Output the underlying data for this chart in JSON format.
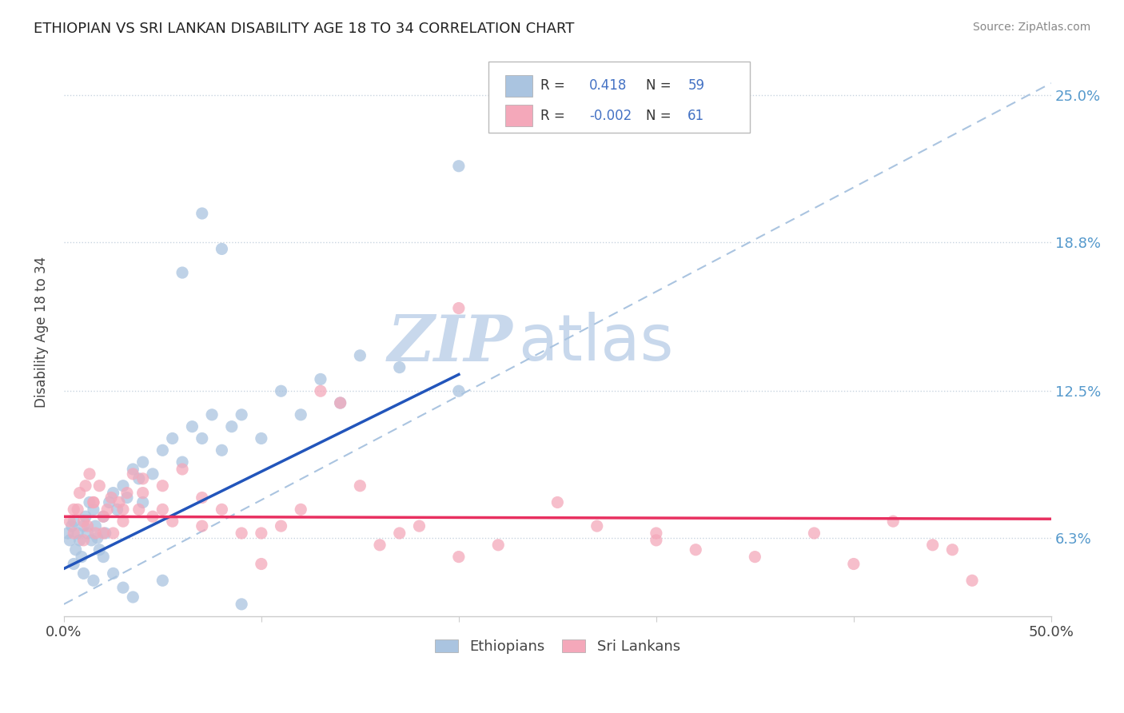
{
  "title": "ETHIOPIAN VS SRI LANKAN DISABILITY AGE 18 TO 34 CORRELATION CHART",
  "source": "Source: ZipAtlas.com",
  "ylabel": "Disability Age 18 to 34",
  "xlim": [
    0.0,
    50.0
  ],
  "ylim": [
    3.0,
    27.0
  ],
  "xtick_positions": [
    0.0,
    10.0,
    20.0,
    30.0,
    40.0,
    50.0
  ],
  "xticklabels": [
    "0.0%",
    "",
    "",
    "",
    "",
    "50.0%"
  ],
  "ytick_right_labels": [
    "6.3%",
    "12.5%",
    "18.8%",
    "25.0%"
  ],
  "ytick_right_values": [
    6.3,
    12.5,
    18.8,
    25.0
  ],
  "r_ethiopian": 0.418,
  "n_ethiopian": 59,
  "r_srilankan": -0.002,
  "n_srilankan": 61,
  "color_ethiopian": "#aac4e0",
  "color_srilankan": "#f4a8ba",
  "color_blue_line": "#2255bb",
  "color_pink_line": "#e83060",
  "color_dashed_line": "#aac4e0",
  "watermark_zip": "ZIP",
  "watermark_atlas": "atlas",
  "watermark_color": "#c8d8ec",
  "background_color": "#ffffff",
  "grid_color": "#c8d4e0",
  "legend_r_color": "#333333",
  "legend_n_color": "#4472c4",
  "eth_x": [
    0.2,
    0.3,
    0.4,
    0.5,
    0.6,
    0.7,
    0.8,
    0.9,
    1.0,
    1.1,
    1.2,
    1.3,
    1.4,
    1.5,
    1.6,
    1.7,
    1.8,
    2.0,
    2.1,
    2.3,
    2.5,
    2.7,
    3.0,
    3.2,
    3.5,
    3.8,
    4.0,
    4.5,
    5.0,
    5.5,
    6.0,
    6.5,
    7.0,
    7.5,
    8.0,
    8.5,
    9.0,
    10.0,
    11.0,
    12.0,
    13.0,
    14.0,
    15.0,
    17.0,
    20.0,
    0.5,
    1.0,
    1.5,
    2.0,
    2.5,
    3.0,
    3.5,
    4.0,
    5.0,
    6.0,
    7.0,
    8.0,
    9.0,
    20.0
  ],
  "eth_y": [
    6.5,
    6.2,
    6.8,
    7.0,
    5.8,
    6.5,
    6.2,
    5.5,
    6.8,
    7.2,
    6.5,
    7.8,
    6.2,
    7.5,
    6.8,
    6.3,
    5.8,
    7.2,
    6.5,
    7.8,
    8.2,
    7.5,
    8.5,
    8.0,
    9.2,
    8.8,
    9.5,
    9.0,
    10.0,
    10.5,
    9.5,
    11.0,
    10.5,
    11.5,
    10.0,
    11.0,
    11.5,
    10.5,
    12.5,
    11.5,
    13.0,
    12.0,
    14.0,
    13.5,
    12.5,
    5.2,
    4.8,
    4.5,
    5.5,
    4.8,
    4.2,
    3.8,
    7.8,
    4.5,
    17.5,
    20.0,
    18.5,
    3.5,
    22.0
  ],
  "sri_x": [
    0.3,
    0.5,
    0.7,
    0.8,
    1.0,
    1.1,
    1.2,
    1.3,
    1.5,
    1.6,
    1.8,
    2.0,
    2.2,
    2.4,
    2.5,
    2.8,
    3.0,
    3.2,
    3.5,
    3.8,
    4.0,
    4.5,
    5.0,
    5.5,
    6.0,
    7.0,
    8.0,
    9.0,
    10.0,
    11.0,
    12.0,
    13.0,
    14.0,
    15.0,
    16.0,
    17.0,
    18.0,
    20.0,
    22.0,
    25.0,
    27.0,
    30.0,
    32.0,
    35.0,
    38.0,
    40.0,
    42.0,
    44.0,
    46.0,
    0.5,
    1.0,
    1.5,
    2.0,
    3.0,
    4.0,
    5.0,
    7.0,
    10.0,
    20.0,
    30.0,
    45.0
  ],
  "sri_y": [
    7.0,
    6.5,
    7.5,
    8.2,
    7.0,
    8.5,
    6.8,
    9.0,
    7.8,
    6.5,
    8.5,
    7.2,
    7.5,
    8.0,
    6.5,
    7.8,
    7.5,
    8.2,
    9.0,
    7.5,
    8.8,
    7.2,
    8.5,
    7.0,
    9.2,
    8.0,
    7.5,
    6.5,
    5.2,
    6.8,
    7.5,
    12.5,
    12.0,
    8.5,
    6.0,
    6.5,
    6.8,
    5.5,
    6.0,
    7.8,
    6.8,
    6.2,
    5.8,
    5.5,
    6.5,
    5.2,
    7.0,
    6.0,
    4.5,
    7.5,
    6.2,
    7.8,
    6.5,
    7.0,
    8.2,
    7.5,
    6.8,
    6.5,
    16.0,
    6.5,
    5.8
  ],
  "eth_line_x0": 0.0,
  "eth_line_x1": 20.0,
  "eth_line_y0": 5.0,
  "eth_line_y1": 13.2,
  "sri_line_x0": 0.0,
  "sri_line_x1": 50.0,
  "sri_line_y0": 7.2,
  "sri_line_y1": 7.1,
  "dash_line_x0": 0.0,
  "dash_line_x1": 50.0,
  "dash_line_y0": 3.5,
  "dash_line_y1": 25.5
}
